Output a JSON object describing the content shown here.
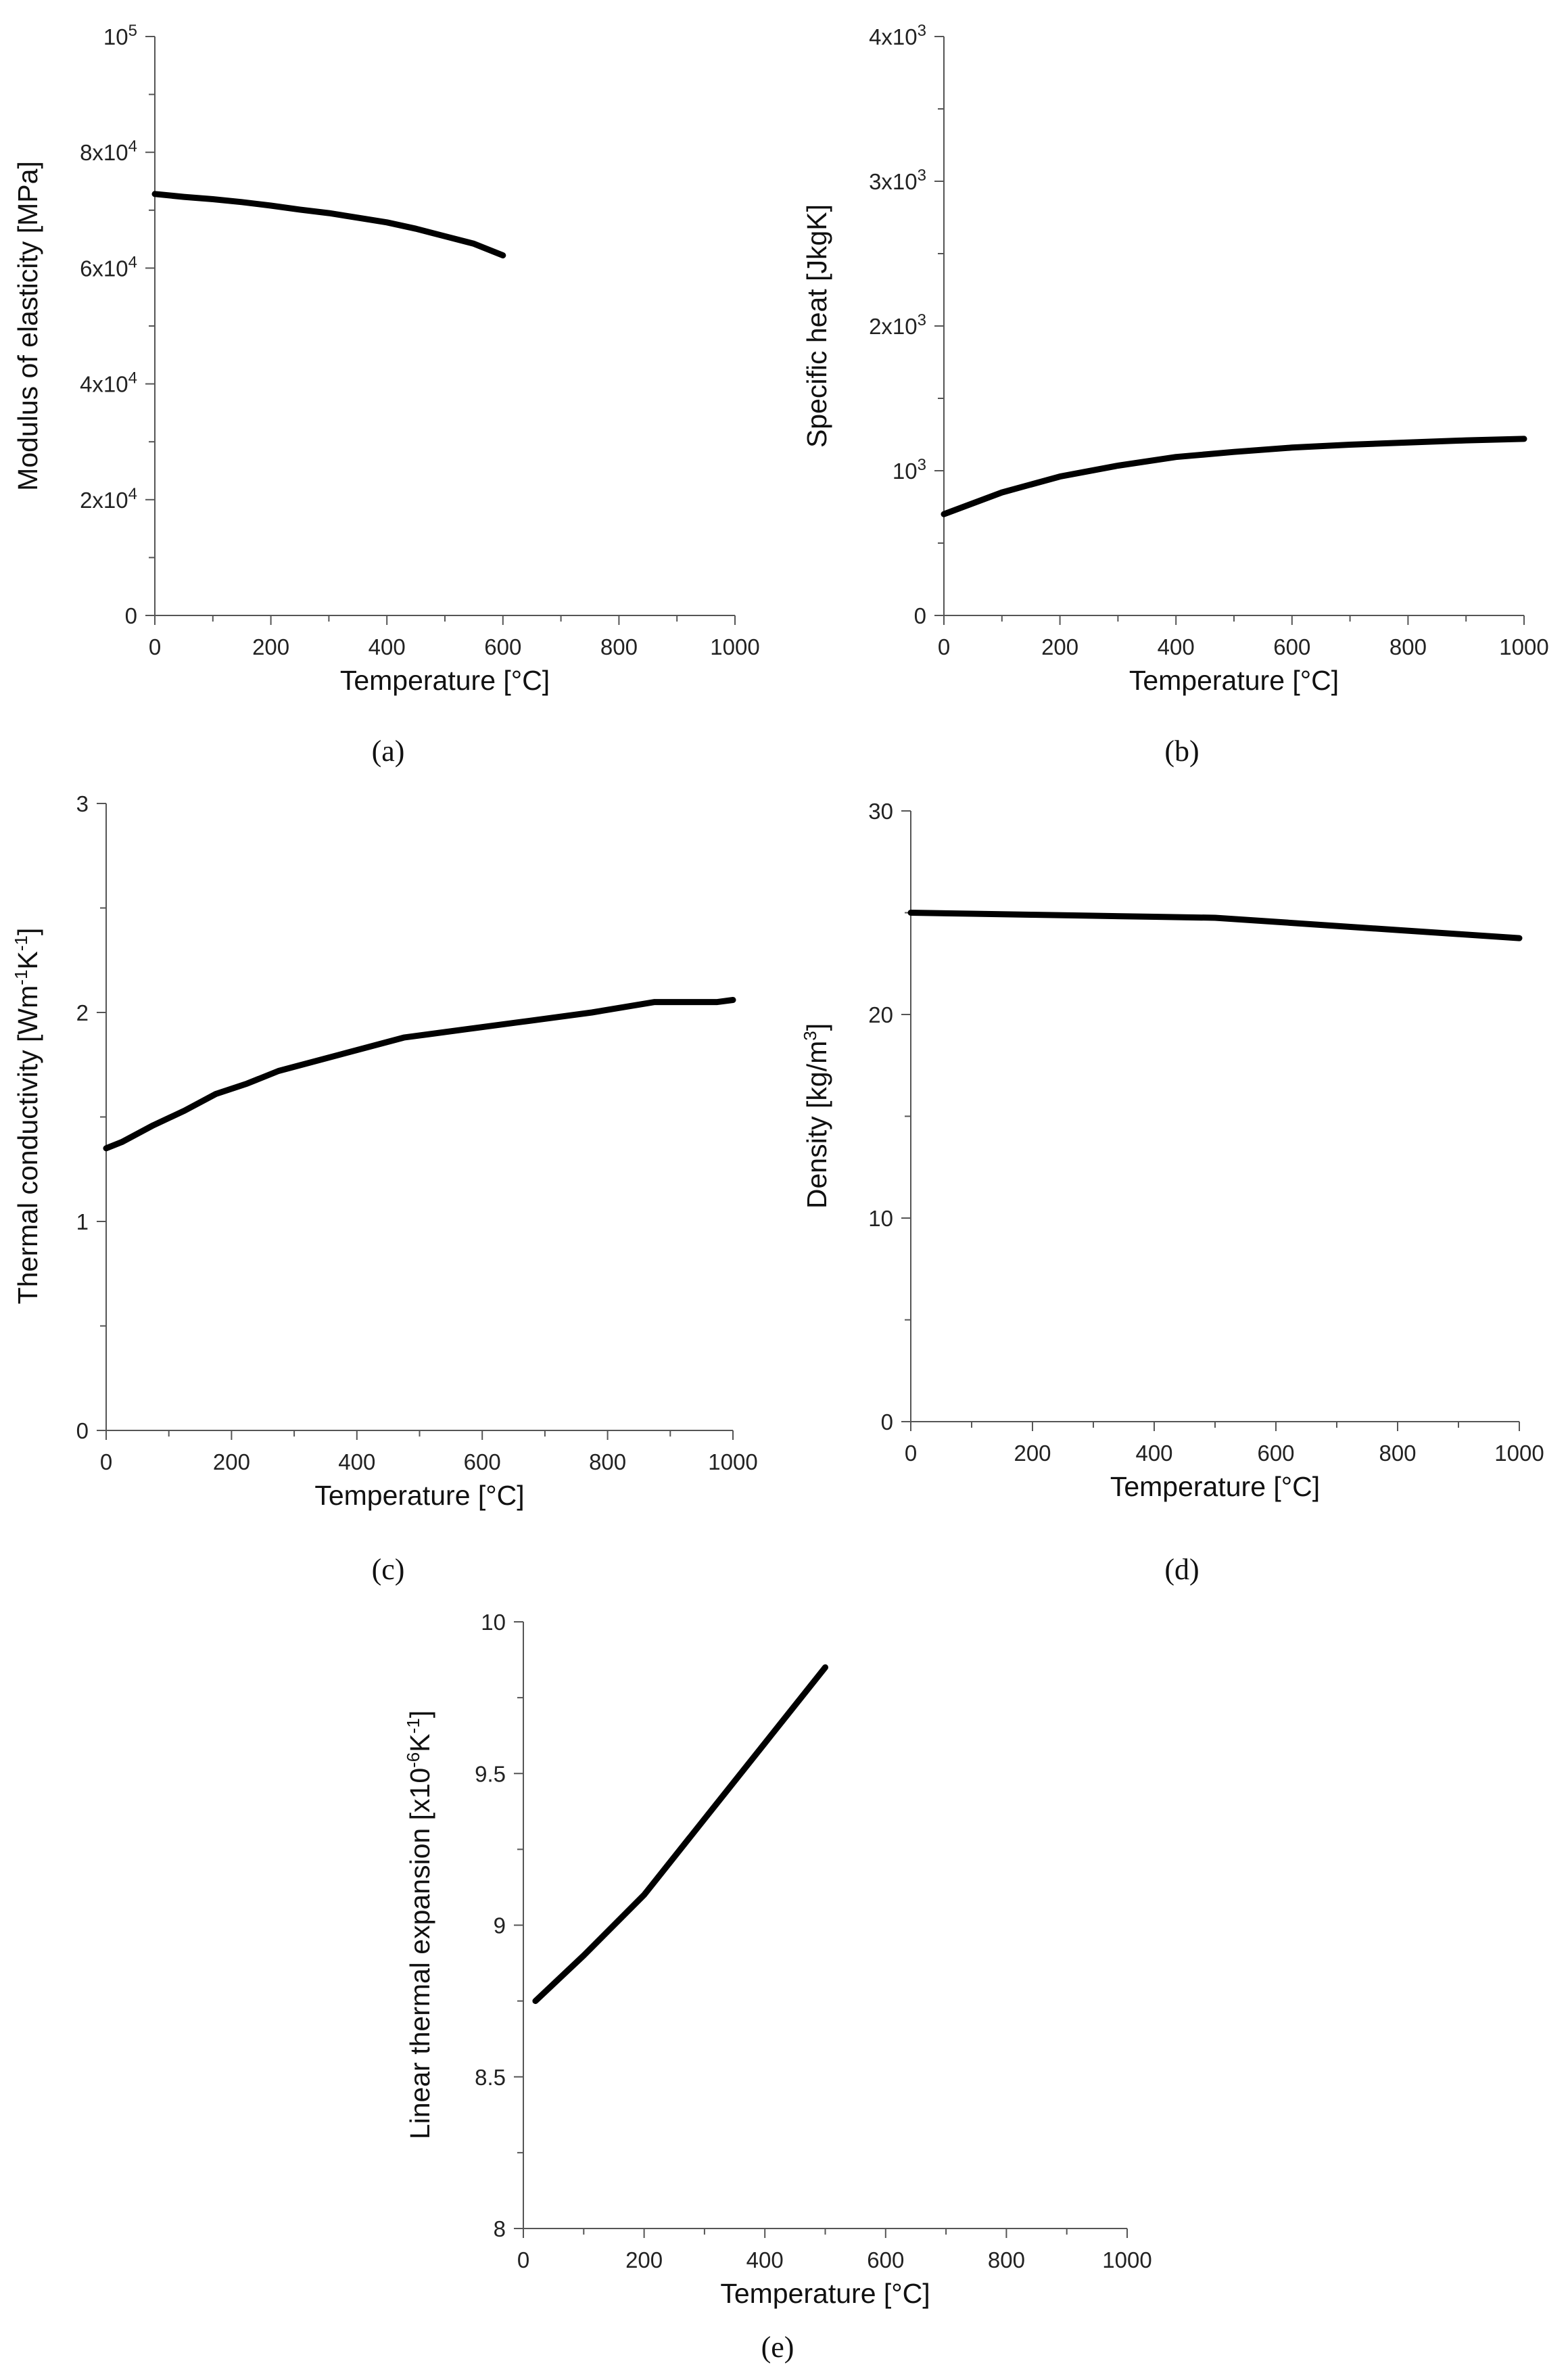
{
  "chart_data": [
    {
      "type": "line",
      "panel": "a",
      "xlabel": "Temperature  [°C]",
      "ylabel": "Modulus of elasticity  [MPa]",
      "xlim": [
        0,
        1000
      ],
      "ylim": [
        0,
        100000
      ],
      "xticks": [
        {
          "v": 0,
          "t": "0"
        },
        {
          "v": 200,
          "t": "200"
        },
        {
          "v": 400,
          "t": "400"
        },
        {
          "v": 600,
          "t": "600"
        },
        {
          "v": 800,
          "t": "800"
        },
        {
          "v": 1000,
          "t": "1000"
        }
      ],
      "yticks": [
        {
          "v": 0,
          "t": "0"
        },
        {
          "v": 20000,
          "t": "2x10",
          "sup": "4"
        },
        {
          "v": 40000,
          "t": "4x10",
          "sup": "4"
        },
        {
          "v": 60000,
          "t": "6x10",
          "sup": "4"
        },
        {
          "v": 80000,
          "t": "8x10",
          "sup": "4"
        },
        {
          "v": 100000,
          "t": "10",
          "sup": "5"
        }
      ],
      "x": [
        0,
        50,
        100,
        150,
        200,
        250,
        300,
        350,
        400,
        450,
        500,
        550,
        600
      ],
      "y": [
        72800,
        72300,
        71900,
        71400,
        70800,
        70100,
        69500,
        68700,
        67900,
        66800,
        65500,
        64200,
        62200
      ]
    },
    {
      "type": "line",
      "panel": "b",
      "xlabel": "Temperature  [°C]",
      "ylabel": "Specific heat  [JkgK]",
      "xlim": [
        0,
        1000
      ],
      "ylim": [
        0,
        4000
      ],
      "xticks": [
        {
          "v": 0,
          "t": "0"
        },
        {
          "v": 200,
          "t": "200"
        },
        {
          "v": 400,
          "t": "400"
        },
        {
          "v": 600,
          "t": "600"
        },
        {
          "v": 800,
          "t": "800"
        },
        {
          "v": 1000,
          "t": "1000"
        }
      ],
      "yticks": [
        {
          "v": 0,
          "t": "0"
        },
        {
          "v": 1000,
          "t": "10",
          "sup": "3"
        },
        {
          "v": 2000,
          "t": "2x10",
          "sup": "3"
        },
        {
          "v": 3000,
          "t": "3x10",
          "sup": "3"
        },
        {
          "v": 4000,
          "t": "4x10",
          "sup": "3"
        }
      ],
      "x": [
        0,
        100,
        200,
        300,
        400,
        500,
        600,
        700,
        800,
        900,
        1000
      ],
      "y": [
        700,
        850,
        960,
        1035,
        1095,
        1130,
        1160,
        1180,
        1195,
        1210,
        1220
      ]
    },
    {
      "type": "line",
      "panel": "c",
      "xlabel": "Temperature  [°C]",
      "ylabel": "Thermal conductivity  [Wm",
      "ylabel_parts": [
        {
          "t": "Thermal conductivity  [Wm"
        },
        {
          "t": "-1",
          "sup": true
        },
        {
          "t": "K"
        },
        {
          "t": "-1",
          "sup": true
        },
        {
          "t": "]"
        }
      ],
      "xlim": [
        0,
        1000
      ],
      "ylim": [
        0,
        3
      ],
      "xticks": [
        {
          "v": 0,
          "t": "0"
        },
        {
          "v": 200,
          "t": "200"
        },
        {
          "v": 400,
          "t": "400"
        },
        {
          "v": 600,
          "t": "600"
        },
        {
          "v": 800,
          "t": "800"
        },
        {
          "v": 1000,
          "t": "1000"
        }
      ],
      "yticks": [
        {
          "v": 0,
          "t": "0"
        },
        {
          "v": 1,
          "t": "1"
        },
        {
          "v": 2,
          "t": "2"
        },
        {
          "v": 3,
          "t": "3"
        }
      ],
      "x": [
        0,
        25,
        75,
        125,
        175,
        225,
        275,
        375,
        475,
        575,
        675,
        775,
        875,
        925,
        975,
        1000
      ],
      "y": [
        1.35,
        1.38,
        1.46,
        1.53,
        1.61,
        1.66,
        1.72,
        1.8,
        1.88,
        1.92,
        1.96,
        2.0,
        2.05,
        2.05,
        2.05,
        2.06
      ]
    },
    {
      "type": "line",
      "panel": "d",
      "xlabel": "Temperature  [°C]",
      "ylabel": "Density  [kg/m",
      "ylabel_parts": [
        {
          "t": "Density  [kg/m"
        },
        {
          "t": "3",
          "sup": true
        },
        {
          "t": "]"
        }
      ],
      "xlim": [
        0,
        1000
      ],
      "ylim": [
        0,
        30
      ],
      "xticks": [
        {
          "v": 0,
          "t": "0"
        },
        {
          "v": 200,
          "t": "200"
        },
        {
          "v": 400,
          "t": "400"
        },
        {
          "v": 600,
          "t": "600"
        },
        {
          "v": 800,
          "t": "800"
        },
        {
          "v": 1000,
          "t": "1000"
        }
      ],
      "yticks": [
        {
          "v": 0,
          "t": "0"
        },
        {
          "v": 10,
          "t": "10"
        },
        {
          "v": 20,
          "t": "20"
        },
        {
          "v": 30,
          "t": "30"
        }
      ],
      "x": [
        0,
        100,
        200,
        300,
        400,
        500,
        600,
        700,
        800,
        900,
        1000
      ],
      "y": [
        25.0,
        24.95,
        24.9,
        24.85,
        24.8,
        24.75,
        24.55,
        24.35,
        24.15,
        23.95,
        23.75
      ]
    },
    {
      "type": "line",
      "panel": "e",
      "xlabel": "Temperature  [°C]",
      "ylabel": "Linear thermal expansion  [x10",
      "ylabel_parts": [
        {
          "t": "Linear thermal expansion  [x10"
        },
        {
          "t": "-6",
          "sup": true
        },
        {
          "t": "K"
        },
        {
          "t": "-1",
          "sup": true
        },
        {
          "t": "]"
        }
      ],
      "xlim": [
        0,
        1000
      ],
      "ylim": [
        8,
        10
      ],
      "xticks": [
        {
          "v": 0,
          "t": "0"
        },
        {
          "v": 200,
          "t": "200"
        },
        {
          "v": 400,
          "t": "400"
        },
        {
          "v": 600,
          "t": "600"
        },
        {
          "v": 800,
          "t": "800"
        },
        {
          "v": 1000,
          "t": "1000"
        }
      ],
      "yticks": [
        {
          "v": 8,
          "t": "8"
        },
        {
          "v": 8.5,
          "t": "8.5"
        },
        {
          "v": 9,
          "t": "9"
        },
        {
          "v": 9.5,
          "t": "9.5"
        },
        {
          "v": 10,
          "t": "10"
        }
      ],
      "x": [
        20,
        100,
        200,
        300,
        400,
        500
      ],
      "y": [
        8.75,
        8.9,
        9.1,
        9.35,
        9.6,
        9.85
      ]
    }
  ],
  "panel_labels": [
    "(a)",
    "(b)",
    "(c)",
    "(d)",
    "(e)"
  ]
}
